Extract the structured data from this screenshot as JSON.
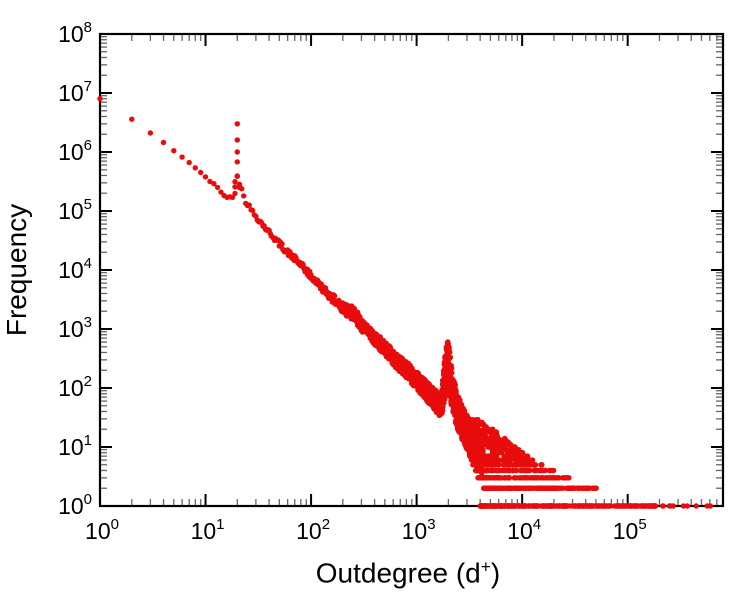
{
  "figure": {
    "background": "#ffffff"
  },
  "chart_data": {
    "type": "scatter",
    "title": "",
    "xlabel": "Outdegree (d+)",
    "xlabel_base": "Outdegree (d",
    "xlabel_sup": "+",
    "xlabel_close": ")",
    "ylabel": "Frequency",
    "xscale": "log",
    "yscale": "log",
    "xlim": [
      1,
      800000
    ],
    "ylim": [
      1,
      100000000
    ],
    "xticks": [
      1,
      10,
      100,
      1000,
      10000,
      100000
    ],
    "yticks": [
      1,
      10,
      100,
      1000,
      10000,
      100000,
      1000000,
      10000000,
      100000000
    ],
    "grid": false,
    "legend": "none",
    "frame_color": "#000000",
    "tick_color_major": "#000000",
    "tick_color_minor": "#666666",
    "marker": {
      "color": "#e80c0c",
      "radius": 2.7
    },
    "random_seed": 42,
    "series": [
      {
        "name": "outdegree-frequency-distribution",
        "curve_xmax": 4200,
        "curve_anchors": [
          [
            1,
            8000000,
            0
          ],
          [
            2,
            3600000,
            0
          ],
          [
            3,
            2100000,
            0
          ],
          [
            4,
            1450000,
            0
          ],
          [
            5,
            1050000,
            0
          ],
          [
            6,
            820000,
            0
          ],
          [
            7,
            660000,
            0
          ],
          [
            8,
            540000,
            0
          ],
          [
            9,
            450000,
            0
          ],
          [
            10,
            380000,
            0.02
          ],
          [
            12,
            280000,
            0.02
          ],
          [
            14,
            215000,
            0.03
          ],
          [
            16,
            170000,
            0.03
          ],
          [
            18,
            165000,
            0.06
          ],
          [
            19,
            260000,
            0.12
          ],
          [
            20,
            620000,
            0.22
          ],
          [
            21,
            330000,
            0.14
          ],
          [
            22,
            215000,
            0.08
          ],
          [
            24,
            150000,
            0.05
          ],
          [
            27,
            105000,
            0.04
          ],
          [
            30,
            82000,
            0.04
          ],
          [
            35,
            58000,
            0.04
          ],
          [
            40,
            44000,
            0.04
          ],
          [
            50,
            28000,
            0.05
          ],
          [
            60,
            20000,
            0.05
          ],
          [
            70,
            15500,
            0.05
          ],
          [
            85,
            11000,
            0.05
          ],
          [
            100,
            7800,
            0.06
          ],
          [
            120,
            5600,
            0.06
          ],
          [
            150,
            3700,
            0.07
          ],
          [
            180,
            2700,
            0.08
          ],
          [
            220,
            2000,
            0.1
          ],
          [
            260,
            1850,
            0.13
          ],
          [
            300,
            1150,
            0.1
          ],
          [
            350,
            880,
            0.1
          ],
          [
            420,
            640,
            0.12
          ],
          [
            500,
            470,
            0.12
          ],
          [
            600,
            330,
            0.13
          ],
          [
            700,
            250,
            0.13
          ],
          [
            850,
            185,
            0.14
          ],
          [
            1000,
            135,
            0.15
          ],
          [
            1200,
            95,
            0.16
          ],
          [
            1500,
            62,
            0.18
          ],
          [
            1700,
            48,
            0.2
          ],
          [
            1900,
            190,
            0.42
          ],
          [
            2000,
            260,
            0.45
          ],
          [
            2100,
            130,
            0.38
          ],
          [
            2400,
            42,
            0.3
          ],
          [
            2800,
            22,
            0.3
          ],
          [
            3200,
            14,
            0.3
          ],
          [
            3700,
            9,
            0.3
          ],
          [
            4200,
            6.5,
            0.3
          ]
        ],
        "extra_points": [
          [
            20,
            3000000
          ],
          [
            20,
            1600000
          ],
          [
            20,
            1000000
          ]
        ],
        "integer_rows": [
          [
            1,
            4000,
            190000,
            320
          ],
          [
            1,
            210000,
            700000,
            10
          ],
          [
            2,
            4300,
            52000,
            170
          ],
          [
            3,
            3800,
            28000,
            110
          ],
          [
            4,
            3500,
            20000,
            80
          ],
          [
            5,
            3400,
            15500,
            60
          ],
          [
            6,
            3300,
            13000,
            48
          ],
          [
            7,
            3200,
            11500,
            40
          ],
          [
            8,
            3100,
            10200,
            34
          ],
          [
            9,
            3050,
            9300,
            29
          ],
          [
            10,
            3000,
            8600,
            25
          ],
          [
            11,
            3000,
            8000,
            22
          ],
          [
            12,
            3000,
            7600,
            19
          ],
          [
            13,
            3000,
            7200,
            17
          ],
          [
            14,
            3000,
            6900,
            15
          ],
          [
            15,
            3000,
            6600,
            13
          ],
          [
            16,
            3000,
            6300,
            11
          ],
          [
            17,
            3000,
            6100,
            10
          ],
          [
            18,
            3000,
            5900,
            9
          ],
          [
            19,
            3000,
            5700,
            8
          ],
          [
            20,
            3000,
            5500,
            7
          ],
          [
            22,
            3000,
            5200,
            6
          ],
          [
            24,
            3000,
            4900,
            5
          ],
          [
            26,
            3000,
            4600,
            4
          ],
          [
            29,
            3000,
            4300,
            3
          ]
        ]
      }
    ]
  }
}
